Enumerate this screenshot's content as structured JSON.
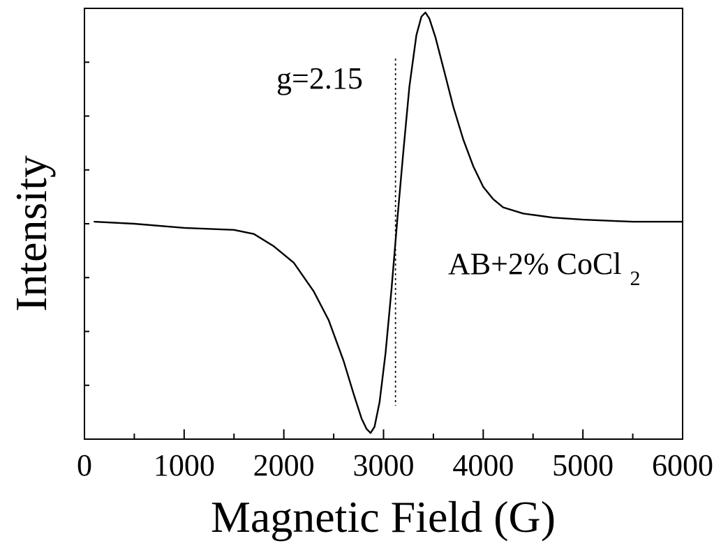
{
  "chart_data": {
    "type": "line",
    "title": "",
    "xlabel": "Magnetic Field (G)",
    "ylabel": "Intensity",
    "xlim": [
      0,
      6000
    ],
    "ylim": [
      -1.05,
      1.05
    ],
    "x_ticks": [
      0,
      1000,
      2000,
      3000,
      4000,
      5000,
      6000
    ],
    "x_minor_step": 500,
    "y_minor_tick_count": 7,
    "show_y_tick_labels": false,
    "grid": false,
    "legend": "none",
    "line_color": "#000000",
    "series": [
      {
        "name": "",
        "x": [
          100,
          500,
          1000,
          1500,
          1700,
          1900,
          2100,
          2300,
          2450,
          2600,
          2700,
          2780,
          2830,
          2870,
          2910,
          2960,
          3020,
          3080,
          3140,
          3200,
          3260,
          3330,
          3380,
          3420,
          3460,
          3520,
          3600,
          3700,
          3800,
          3900,
          4000,
          4100,
          4200,
          4400,
          4700,
          5000,
          5500,
          6000
        ],
        "y": [
          0.01,
          0.0,
          -0.02,
          -0.03,
          -0.05,
          -0.11,
          -0.19,
          -0.33,
          -0.47,
          -0.67,
          -0.83,
          -0.95,
          -1.0,
          -1.02,
          -0.99,
          -0.87,
          -0.63,
          -0.32,
          0.03,
          0.36,
          0.67,
          0.92,
          1.01,
          1.03,
          1.0,
          0.91,
          0.76,
          0.57,
          0.41,
          0.28,
          0.18,
          0.12,
          0.08,
          0.05,
          0.03,
          0.02,
          0.01,
          0.01
        ]
      }
    ],
    "annotations": [
      {
        "type": "vline",
        "x": 3120,
        "label": "g=2.15",
        "style": "dotted"
      },
      {
        "type": "text",
        "text": "AB+2% CoCl",
        "subscript": "2"
      }
    ]
  }
}
